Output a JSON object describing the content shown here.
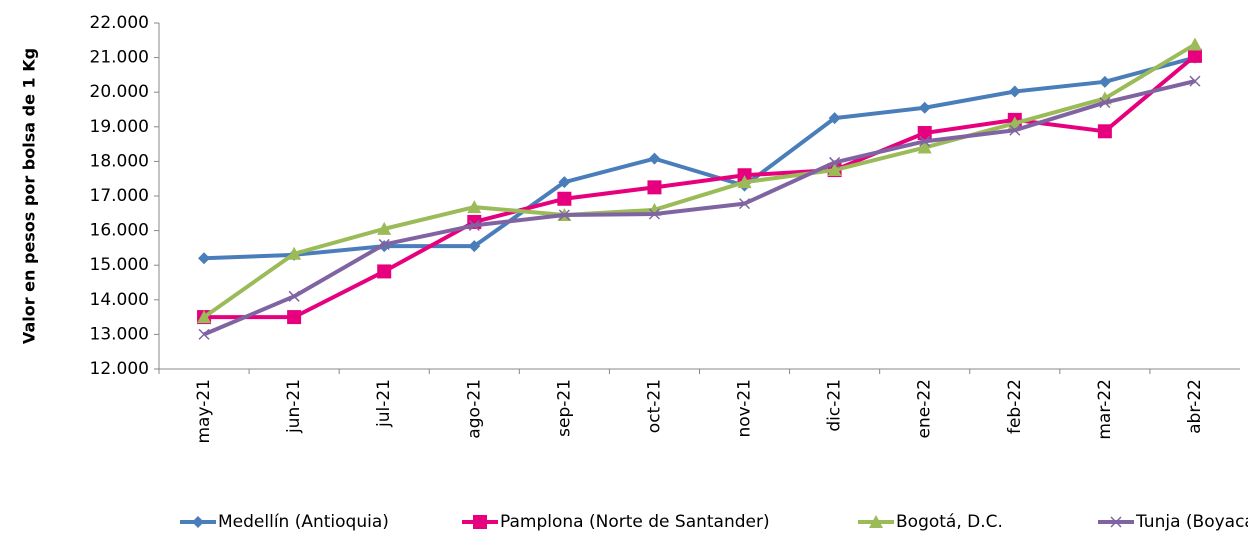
{
  "chart_data": {
    "type": "line",
    "y_label": "Valor en pesos por bolsa de 1 Kg",
    "categories": [
      "may-21",
      "jun-21",
      "jul-21",
      "ago-21",
      "sep-21",
      "oct-21",
      "nov-21",
      "dic-21",
      "ene-22",
      "feb-22",
      "mar-22",
      "abr-22"
    ],
    "series": [
      {
        "name": "Medellín (Antioquia)",
        "color": "#4a7ebb",
        "marker": "diamond",
        "values": [
          15200,
          15300,
          15550,
          15550,
          17400,
          18080,
          17300,
          19250,
          19550,
          20020,
          20300,
          21000
        ]
      },
      {
        "name": "Pamplona (Norte de Santander)",
        "color": "#e6007e",
        "marker": "square",
        "values": [
          13500,
          13500,
          14820,
          16250,
          16920,
          17250,
          17600,
          17750,
          18820,
          19200,
          18870,
          21050
        ]
      },
      {
        "name": "Bogotá, D.C.",
        "color": "#9bbb59",
        "marker": "triangle",
        "values": [
          13500,
          15330,
          16050,
          16680,
          16450,
          16600,
          17400,
          17750,
          18400,
          19100,
          19820,
          21380
        ]
      },
      {
        "name": "Tunja (Boyacá)",
        "color": "#8064a2",
        "marker": "x",
        "values": [
          13000,
          14100,
          15600,
          16150,
          16450,
          16480,
          16780,
          17970,
          18580,
          18900,
          19700,
          20320
        ]
      }
    ],
    "ylim": [
      12000,
      22000
    ],
    "yticks": [
      {
        "value": 12000,
        "label": "12.000"
      },
      {
        "value": 13000,
        "label": "13.000"
      },
      {
        "value": 14000,
        "label": "14.000"
      },
      {
        "value": 15000,
        "label": "15.000"
      },
      {
        "value": 16000,
        "label": "16.000"
      },
      {
        "value": 17000,
        "label": "17.000"
      },
      {
        "value": 18000,
        "label": "18.000"
      },
      {
        "value": 19000,
        "label": "19.000"
      },
      {
        "value": 20000,
        "label": "20.000"
      },
      {
        "value": 21000,
        "label": "21.000"
      },
      {
        "value": 22000,
        "label": "22.000"
      }
    ],
    "grid": false,
    "legend": "bottom"
  }
}
